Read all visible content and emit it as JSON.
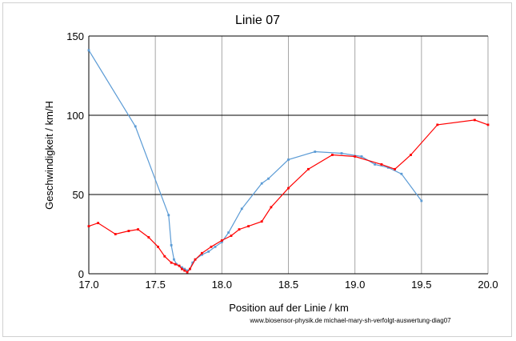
{
  "chart_data": {
    "type": "line",
    "title": "Linie 07",
    "xlabel": "Position auf der Linie / km",
    "ylabel": "Geschwindigkeit / km/H",
    "credit": "www.biosensor-physik.de   michael-mary-sh-verfolgt-auswertung-diag07",
    "xlim": [
      17.0,
      20.0
    ],
    "ylim": [
      0,
      150
    ],
    "x_ticks": [
      "17.0",
      "17.5",
      "18.0",
      "18.5",
      "19.0",
      "19.5",
      "20.0"
    ],
    "y_ticks": [
      "0",
      "50",
      "100",
      "150"
    ],
    "grid": "vertical and horizontal major gridlines",
    "series": [
      {
        "color": "#5b9bd5",
        "marker_color": "#5b9bd5",
        "points": [
          [
            17.0,
            141
          ],
          [
            17.35,
            93
          ],
          [
            17.6,
            37
          ],
          [
            17.62,
            18
          ],
          [
            17.64,
            9
          ],
          [
            17.66,
            6
          ],
          [
            17.68,
            5
          ],
          [
            17.7,
            4
          ],
          [
            17.72,
            3
          ],
          [
            17.74,
            2
          ],
          [
            17.76,
            3
          ],
          [
            17.78,
            7
          ],
          [
            17.8,
            9
          ],
          [
            17.85,
            12
          ],
          [
            17.9,
            14
          ],
          [
            17.95,
            17
          ],
          [
            18.0,
            20
          ],
          [
            18.05,
            26
          ],
          [
            18.15,
            41
          ],
          [
            18.3,
            57
          ],
          [
            18.35,
            60
          ],
          [
            18.5,
            72
          ],
          [
            18.7,
            77
          ],
          [
            18.9,
            76
          ],
          [
            19.05,
            74
          ],
          [
            19.15,
            69
          ],
          [
            19.25,
            67
          ],
          [
            19.35,
            63
          ],
          [
            19.5,
            46
          ]
        ]
      },
      {
        "color": "#ff0000",
        "marker_color": "#ff0000",
        "points": [
          [
            17.0,
            30
          ],
          [
            17.07,
            32
          ],
          [
            17.2,
            25
          ],
          [
            17.3,
            27
          ],
          [
            17.37,
            28
          ],
          [
            17.45,
            23
          ],
          [
            17.52,
            17
          ],
          [
            17.57,
            11
          ],
          [
            17.62,
            7
          ],
          [
            17.65,
            6
          ],
          [
            17.68,
            5
          ],
          [
            17.7,
            3
          ],
          [
            17.72,
            2
          ],
          [
            17.74,
            1
          ],
          [
            17.76,
            3
          ],
          [
            17.8,
            9
          ],
          [
            17.85,
            13
          ],
          [
            17.92,
            17
          ],
          [
            18.0,
            21
          ],
          [
            18.07,
            24
          ],
          [
            18.13,
            28
          ],
          [
            18.2,
            30
          ],
          [
            18.3,
            33
          ],
          [
            18.37,
            42
          ],
          [
            18.5,
            54
          ],
          [
            18.65,
            66
          ],
          [
            18.83,
            75
          ],
          [
            19.0,
            74
          ],
          [
            19.2,
            69
          ],
          [
            19.3,
            66
          ],
          [
            19.42,
            75
          ],
          [
            19.62,
            94
          ],
          [
            19.9,
            97
          ],
          [
            20.0,
            94
          ]
        ]
      }
    ]
  }
}
